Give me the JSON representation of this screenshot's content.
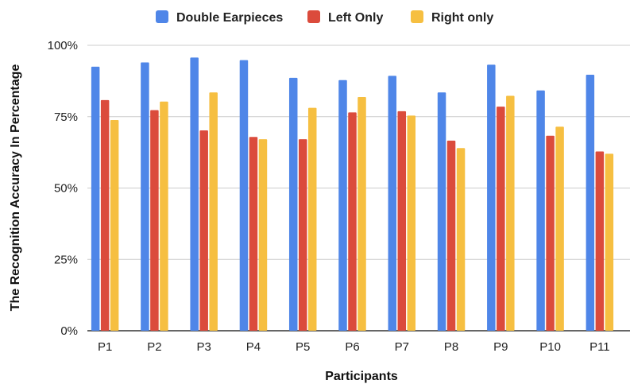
{
  "chart_data": {
    "type": "bar",
    "title": "",
    "xlabel": "Participants",
    "ylabel": "The Recognition Accuracy In Percentage",
    "ylim": [
      0,
      100
    ],
    "yticks": [
      0,
      25,
      50,
      75,
      100
    ],
    "ytick_labels": [
      "0%",
      "25%",
      "50%",
      "75%",
      "100%"
    ],
    "grid": true,
    "legend_position": "top",
    "categories": [
      "P1",
      "P2",
      "P3",
      "P4",
      "P5",
      "P6",
      "P7",
      "P8",
      "P9",
      "P10",
      "P11"
    ],
    "series": [
      {
        "name": "Double Earpieces",
        "color": "#4F86E8",
        "values": [
          92.5,
          94,
          95.7,
          94.8,
          88.6,
          87.8,
          89.3,
          83.5,
          93.2,
          84.2,
          89.7
        ]
      },
      {
        "name": "Left Only",
        "color": "#DB4B3C",
        "values": [
          80.8,
          77.3,
          70.2,
          67.9,
          67.1,
          76.5,
          76.9,
          66.6,
          78.5,
          68.3,
          62.8
        ]
      },
      {
        "name": "Right only",
        "color": "#F6BF41",
        "values": [
          73.8,
          80.3,
          83.5,
          67.1,
          78.1,
          81.9,
          75.4,
          64,
          82.3,
          71.5,
          62
        ]
      }
    ]
  }
}
